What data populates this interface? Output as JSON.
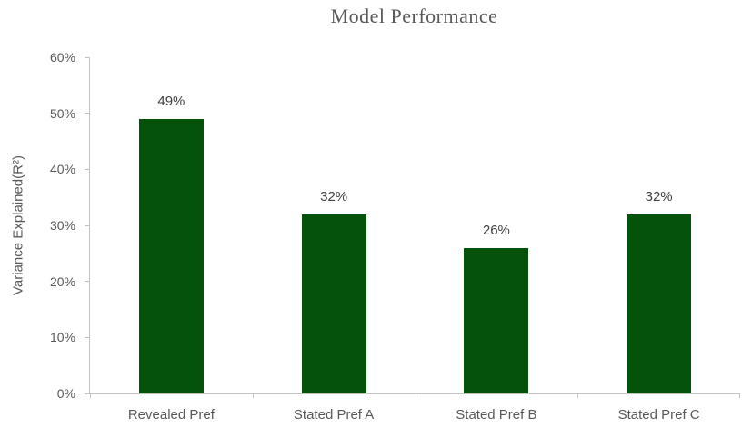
{
  "chart_data": {
    "type": "bar",
    "title": "Model Performance",
    "ylabel": "Variance Explained(R²)",
    "xlabel": "",
    "categories": [
      "Revealed Pref",
      "Stated Pref A",
      "Stated Pref B",
      "Stated Pref C"
    ],
    "values": [
      49,
      32,
      26,
      32
    ],
    "value_labels": [
      "49%",
      "32%",
      "26%",
      "32%"
    ],
    "ylim": [
      0,
      60
    ],
    "ytick_values": [
      0,
      10,
      20,
      30,
      40,
      50,
      60
    ],
    "ytick_labels": [
      "0%",
      "10%",
      "20%",
      "30%",
      "40%",
      "50%",
      "60%"
    ],
    "grid": false,
    "legend": "none",
    "colors": {
      "bar": "#05520a",
      "axis": "#c3c3c3",
      "tick_text": "#595959",
      "title_text": "#595959",
      "value_label_text": "#404040"
    }
  }
}
